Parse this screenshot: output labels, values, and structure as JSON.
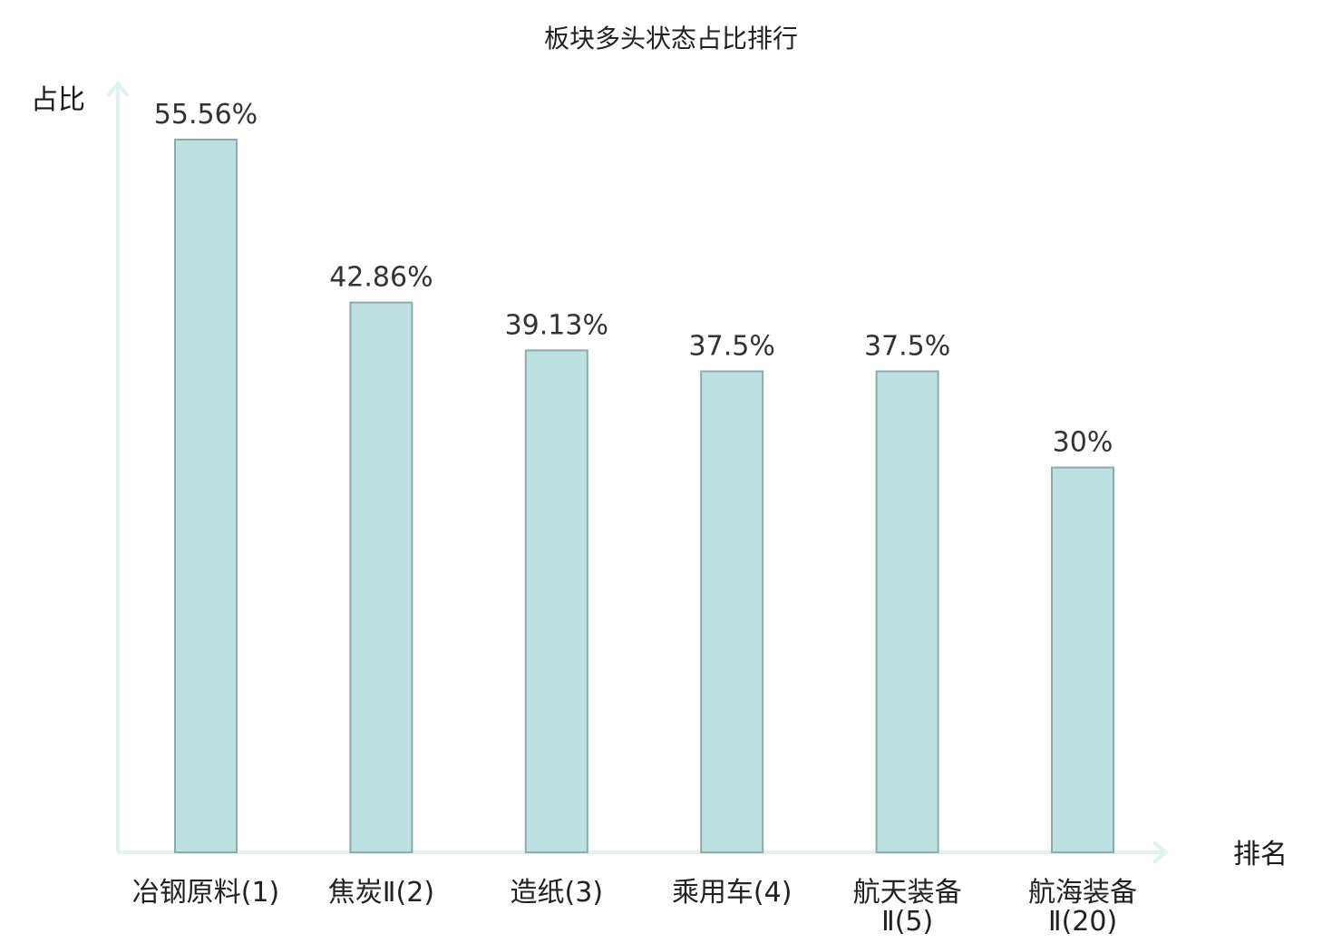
{
  "chart_data": {
    "type": "bar",
    "title": "板块多头状态占比排行",
    "ylabel": "占比",
    "xlabel": "排名",
    "ylim": [
      0,
      60
    ],
    "grid": false,
    "categories": [
      {
        "line1": "冶钢原料(1)",
        "line2": "",
        "highlight": false
      },
      {
        "line1": "焦炭Ⅱ(2)",
        "line2": "",
        "highlight": false
      },
      {
        "line1": "造纸(3)",
        "line2": "",
        "highlight": false
      },
      {
        "line1": "乘用车(4)",
        "line2": "",
        "highlight": false
      },
      {
        "line1": "航天装备",
        "line2": "Ⅱ(5)",
        "highlight": false
      },
      {
        "line1": "航海装备",
        "line2": "Ⅱ(20)",
        "highlight": true
      }
    ],
    "values": [
      55.56,
      42.86,
      39.13,
      37.5,
      37.5,
      30
    ],
    "value_labels": [
      "55.56%",
      "42.86%",
      "39.13%",
      "37.5%",
      "37.5%",
      "30%"
    ]
  },
  "colors": {
    "bar_fill": "#bde0e3",
    "bar_stroke": "#8eaaab",
    "axis": "#e0f2ef",
    "highlight_text": "#e01010",
    "normal_text": "#222222"
  }
}
